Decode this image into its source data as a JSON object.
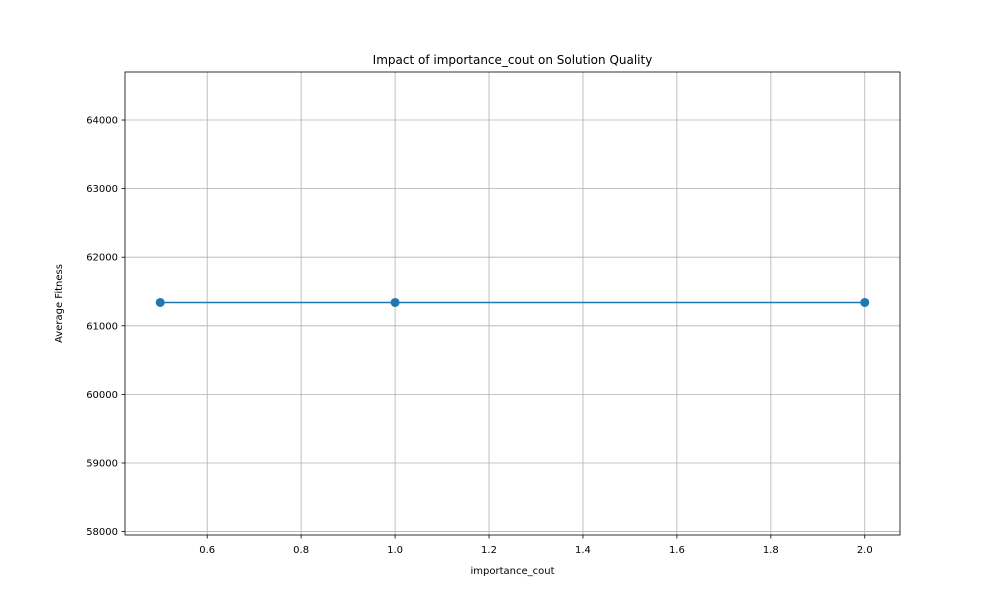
{
  "chart_data": {
    "type": "line",
    "title": "Impact of importance_cout on Solution Quality",
    "xlabel": "importance_cout",
    "ylabel": "Average Fitness",
    "xlim": [
      0.425,
      2.075
    ],
    "ylim": [
      57950,
      64700
    ],
    "xticks": [
      0.6,
      0.8,
      1.0,
      1.2,
      1.4,
      1.6,
      1.8,
      2.0
    ],
    "xtick_labels": [
      "0.6",
      "0.8",
      "1.0",
      "1.2",
      "1.4",
      "1.6",
      "1.8",
      "2.0"
    ],
    "yticks": [
      58000,
      59000,
      60000,
      61000,
      62000,
      63000,
      64000
    ],
    "ytick_labels": [
      "58000",
      "59000",
      "60000",
      "61000",
      "62000",
      "63000",
      "64000"
    ],
    "grid": true,
    "series": [
      {
        "x": [
          0.5,
          1.0,
          2.0
        ],
        "y": [
          61340,
          61340,
          61340
        ],
        "color": "#1f77b4",
        "marker": "circle"
      }
    ]
  }
}
